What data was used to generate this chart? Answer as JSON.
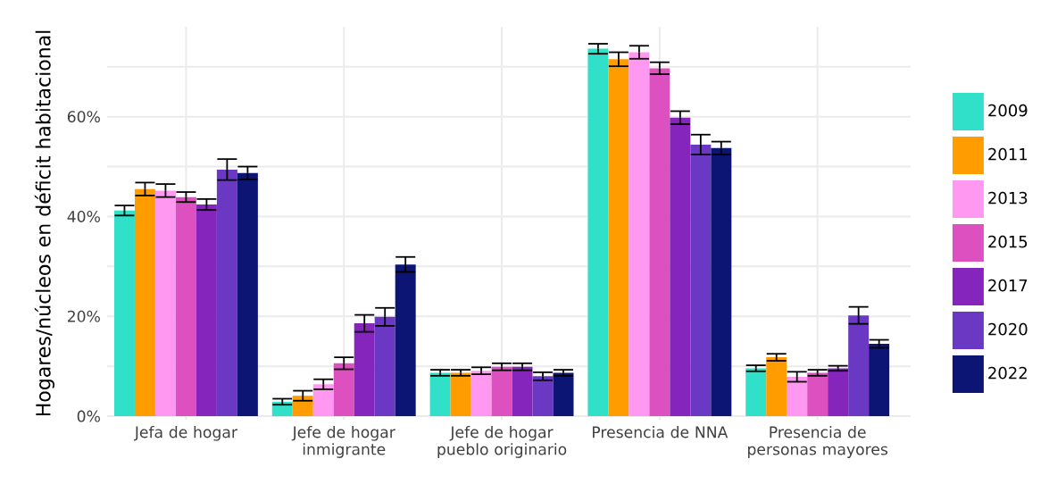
{
  "chart_data": {
    "type": "bar",
    "ylabel": "Hogares/núcleos en déficit habitacional",
    "categories": [
      "Jefa de hogar",
      "Jefe de hogar inmigrante",
      "Jefe de hogar pueblo originario",
      "Presencia de NNA",
      "Presencia de personas mayores"
    ],
    "series": [
      {
        "name": "2009",
        "color": "#30e0c8",
        "values": [
          41.2,
          2.9,
          8.7,
          73.6,
          9.6
        ],
        "errors": [
          1.0,
          0.6,
          0.6,
          1.0,
          0.6
        ]
      },
      {
        "name": "2011",
        "color": "#ff9c00",
        "values": [
          45.5,
          4.1,
          8.7,
          71.5,
          11.8
        ],
        "errors": [
          1.3,
          1.0,
          0.6,
          1.4,
          0.7
        ]
      },
      {
        "name": "2013",
        "color": "#ff98f0",
        "values": [
          45.2,
          6.4,
          9.1,
          72.9,
          7.9
        ],
        "errors": [
          1.3,
          1.0,
          0.7,
          1.3,
          1.0
        ]
      },
      {
        "name": "2015",
        "color": "#dd50c0",
        "values": [
          43.9,
          10.6,
          9.9,
          69.7,
          8.7
        ],
        "errors": [
          1.0,
          1.2,
          0.7,
          1.2,
          0.6
        ]
      },
      {
        "name": "2017",
        "color": "#8525bc",
        "values": [
          42.4,
          18.6,
          9.9,
          59.8,
          9.6
        ],
        "errors": [
          1.1,
          1.7,
          0.7,
          1.3,
          0.5
        ]
      },
      {
        "name": "2020",
        "color": "#6a38c2",
        "values": [
          49.4,
          19.9,
          8.0,
          54.4,
          20.2
        ],
        "errors": [
          2.1,
          1.8,
          0.8,
          2.0,
          1.7
        ]
      },
      {
        "name": "2022",
        "color": "#0c1574",
        "values": [
          48.7,
          30.4,
          8.7,
          53.7,
          14.5
        ],
        "errors": [
          1.3,
          1.5,
          0.6,
          1.3,
          0.8
        ]
      }
    ],
    "ylim": [
      -0.7,
      78
    ],
    "yticks": [
      {
        "value": 0,
        "label": "0%"
      },
      {
        "value": 10,
        "label": null
      },
      {
        "value": 20,
        "label": "20%"
      },
      {
        "value": 30,
        "label": null
      },
      {
        "value": 40,
        "label": "40%"
      },
      {
        "value": 50,
        "label": null
      },
      {
        "value": 60,
        "label": "60%"
      },
      {
        "value": 70,
        "label": null
      }
    ],
    "grid": true,
    "legend": "right"
  }
}
